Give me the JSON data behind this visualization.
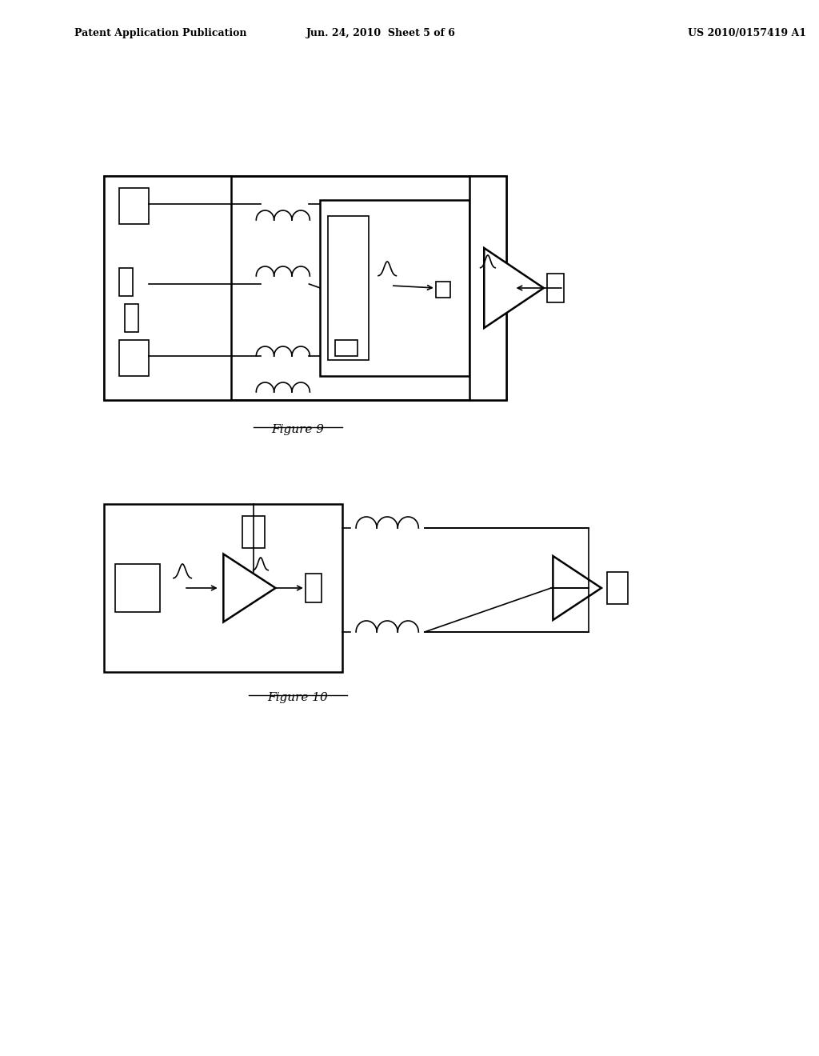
{
  "background_color": "#ffffff",
  "header_left": "Patent Application Publication",
  "header_center": "Jun. 24, 2010  Sheet 5 of 6",
  "header_right": "US 2010/0157419 A1",
  "fig9_label": "Figure 9",
  "fig10_label": "Figure 10",
  "line_color": "#000000",
  "box_fill": "#ffffff",
  "gray_fill": "#cccccc"
}
